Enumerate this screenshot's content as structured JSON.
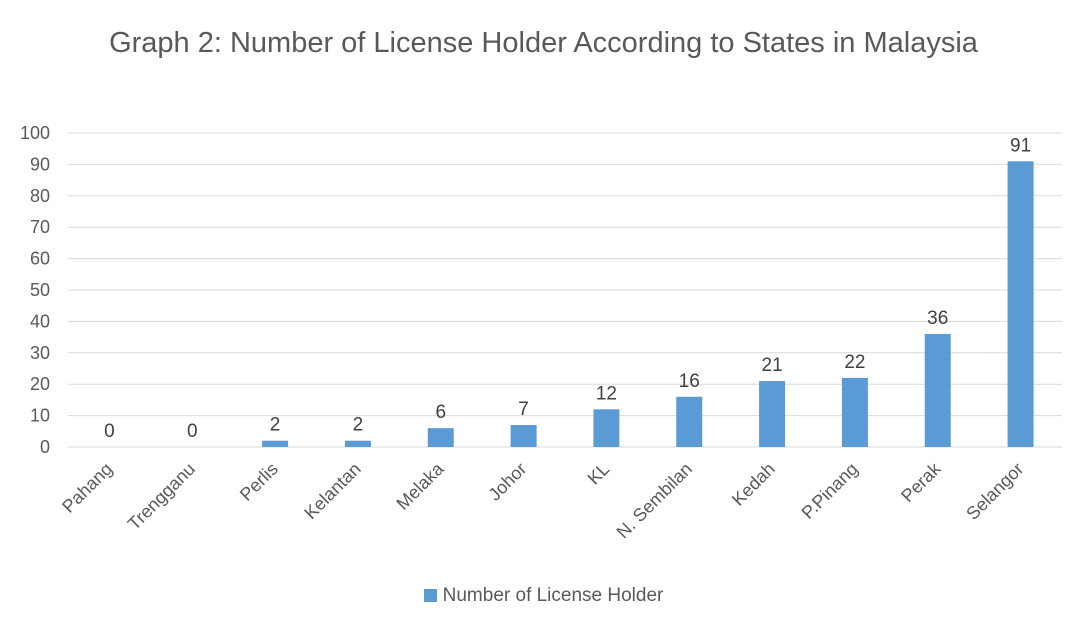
{
  "chart_data": {
    "type": "bar",
    "title": "Graph 2: Number of License Holder According to States in Malaysia",
    "categories": [
      "Pahang",
      "Trengganu",
      "Perlis",
      "Kelantan",
      "Melaka",
      "Johor",
      "KL",
      "N. Sembilan",
      "Kedah",
      "P.Pinang",
      "Perak",
      "Selangor"
    ],
    "series": [
      {
        "name": "Number of License Holder",
        "values": [
          0,
          0,
          2,
          2,
          6,
          7,
          12,
          16,
          21,
          22,
          36,
          91
        ],
        "color": "#5b9bd5"
      }
    ],
    "ylim": [
      0,
      100
    ],
    "yticks": [
      0,
      10,
      20,
      30,
      40,
      50,
      60,
      70,
      80,
      90,
      100
    ],
    "grid": true,
    "data_labels": true,
    "legend_position": "bottom",
    "xlabel": "",
    "ylabel": ""
  }
}
